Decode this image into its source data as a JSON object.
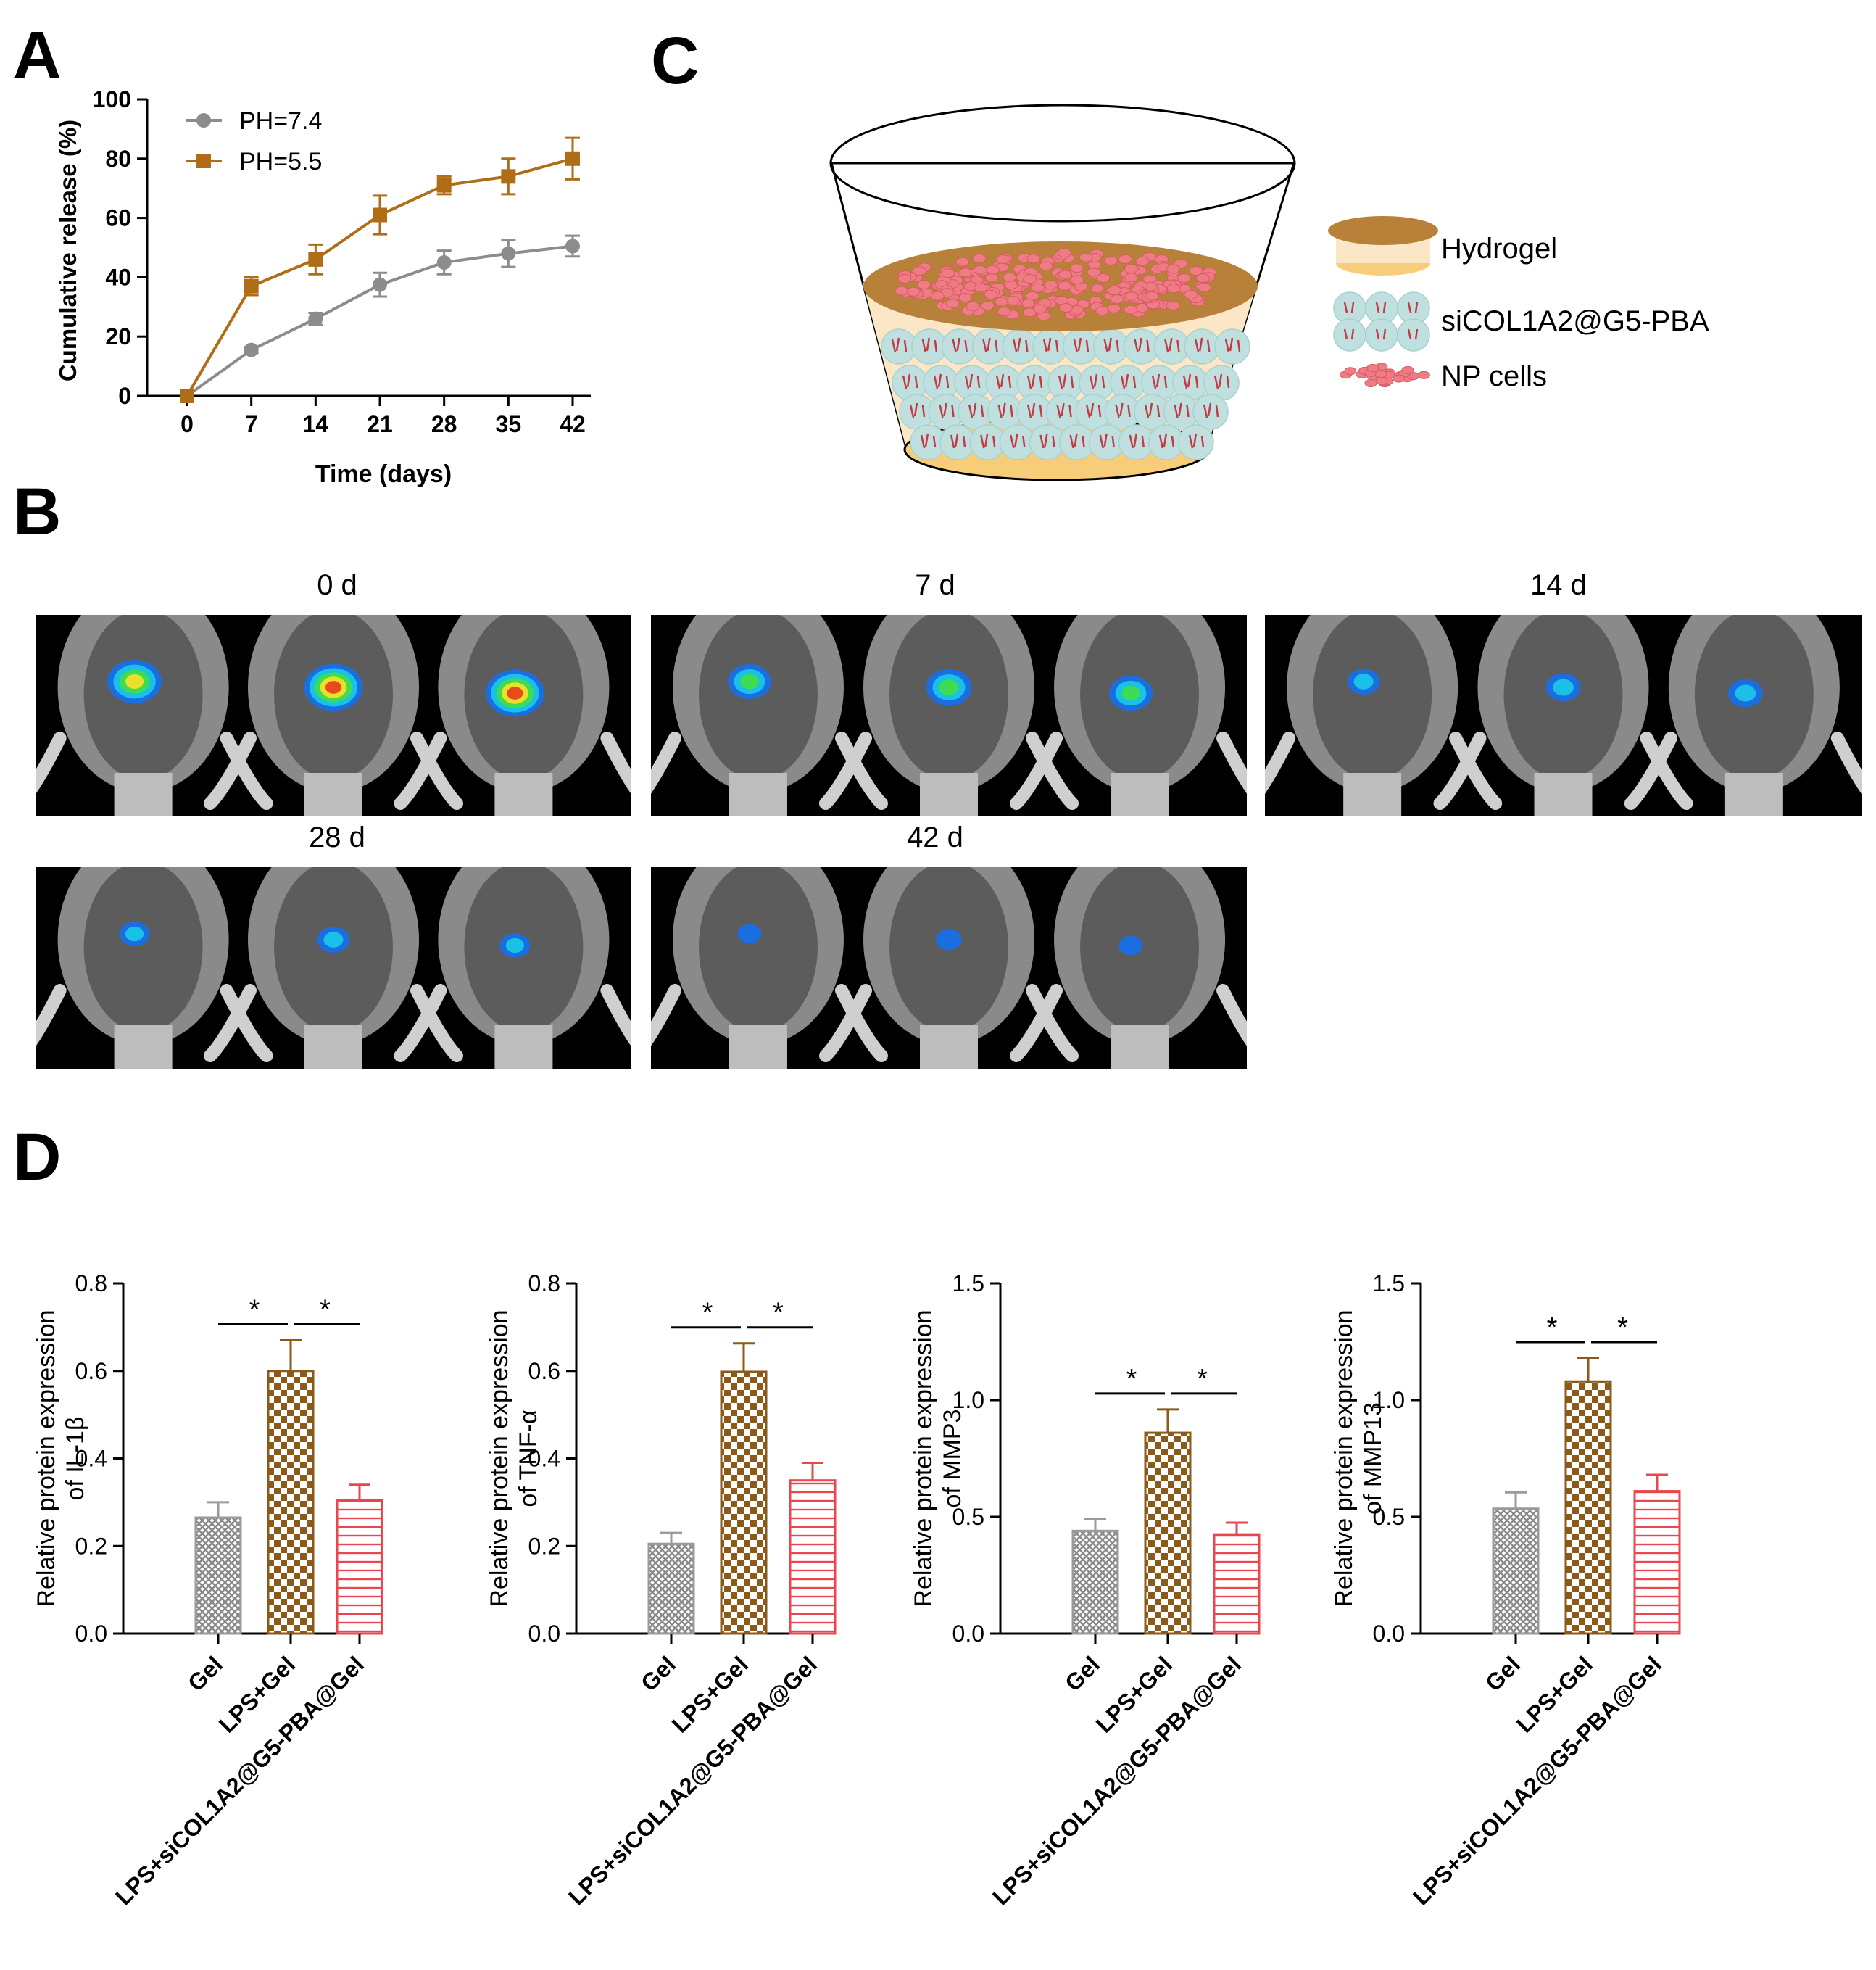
{
  "panels": {
    "a": "A",
    "b": "B",
    "c": "C",
    "d": "D"
  },
  "chart_data": [
    {
      "type": "line",
      "panel": "A",
      "xlabel": "Time (days)",
      "ylabel": "Cumulative release (%)",
      "x": [
        0,
        7,
        14,
        21,
        28,
        35,
        42
      ],
      "ylim": [
        0,
        100
      ],
      "yticks": [
        0,
        20,
        40,
        60,
        80,
        100
      ],
      "legend_position": "top-left",
      "series": [
        {
          "name": "PH=7.4",
          "color": "#8c8c8c",
          "marker": "circle",
          "values": [
            0,
            15.5,
            26,
            37.5,
            45,
            48,
            50.5
          ],
          "errors": [
            0,
            1,
            2,
            4,
            4,
            4.5,
            3.5
          ]
        },
        {
          "name": "PH=5.5",
          "color": "#b06d17",
          "marker": "square",
          "values": [
            0,
            37,
            46,
            61,
            71,
            74,
            80
          ],
          "errors": [
            0,
            3,
            5,
            6.5,
            3,
            6,
            7
          ]
        }
      ]
    },
    {
      "type": "bar",
      "panel": "D",
      "ylabel": [
        "Relative protein expression",
        "of IL-1β"
      ],
      "categories": [
        "Gel",
        "LPS+Gel",
        "LPS+siCOL1A2@G5-PBA@Gel"
      ],
      "values": [
        0.265,
        0.6,
        0.305
      ],
      "errors": [
        0.035,
        0.07,
        0.035
      ],
      "ylim": [
        0,
        0.8
      ],
      "yticks": [
        "0.0",
        "0.2",
        "0.4",
        "0.6",
        "0.8"
      ],
      "significance": [
        "*",
        "*"
      ]
    },
    {
      "type": "bar",
      "panel": "D",
      "ylabel": [
        "Relative protein expression",
        "of TNF-α"
      ],
      "categories": [
        "Gel",
        "LPS+Gel",
        "LPS+siCOL1A2@G5-PBA@Gel"
      ],
      "values": [
        0.205,
        0.598,
        0.35
      ],
      "errors": [
        0.025,
        0.065,
        0.04
      ],
      "ylim": [
        0,
        0.8
      ],
      "yticks": [
        "0.0",
        "0.2",
        "0.4",
        "0.6",
        "0.8"
      ],
      "significance": [
        "*",
        "*"
      ]
    },
    {
      "type": "bar",
      "panel": "D",
      "ylabel": [
        "Relative protein expression",
        "of MMP3"
      ],
      "categories": [
        "Gel",
        "LPS+Gel",
        "LPS+siCOL1A2@G5-PBA@Gel"
      ],
      "values": [
        0.44,
        0.86,
        0.425
      ],
      "errors": [
        0.05,
        0.1,
        0.05
      ],
      "ylim": [
        0,
        1.5
      ],
      "yticks": [
        "0.0",
        "0.5",
        "1.0",
        "1.5"
      ],
      "significance": [
        "*",
        "*"
      ]
    },
    {
      "type": "bar",
      "panel": "D",
      "ylabel": [
        "Relative protein expression",
        "of MMP13"
      ],
      "categories": [
        "Gel",
        "LPS+Gel",
        "LPS+siCOL1A2@G5-PBA@Gel"
      ],
      "values": [
        0.535,
        1.08,
        0.61
      ],
      "errors": [
        0.07,
        0.1,
        0.07
      ],
      "ylim": [
        0,
        1.5
      ],
      "yticks": [
        "0.0",
        "0.5",
        "1.0",
        "1.5"
      ],
      "significance": [
        "*",
        "*"
      ]
    }
  ],
  "bar_styles": [
    {
      "fill": "#9a9a9a",
      "pattern": "crosshatch"
    },
    {
      "fill": "#8c5a18",
      "pattern": "checker"
    },
    {
      "fill": "#e8474f",
      "pattern": "horizontal-lines"
    }
  ],
  "schematic": {
    "legend": [
      "Hydrogel",
      "siCOL1A2@G5-PBA",
      "NP cells"
    ],
    "colors": {
      "hydrogel_top": "#b8813a",
      "hydrogel_bottom": "#f7cd7a",
      "cells": "#ef7c84",
      "nanoparticles": "#bfe0de"
    }
  },
  "imaging": {
    "timepoints": [
      "0 d",
      "7 d",
      "14 d",
      "28 d",
      "42 d"
    ],
    "signal_colors": [
      "#1a6ee0",
      "#19c0e8",
      "#3ddc52",
      "#e8e02a",
      "#e84a1c"
    ],
    "signal_levels": {
      "0 d": [
        0.85,
        0.95,
        0.95
      ],
      "7 d": [
        0.6,
        0.65,
        0.6
      ],
      "14 d": [
        0.35,
        0.4,
        0.4
      ],
      "28 d": [
        0.3,
        0.35,
        0.3
      ],
      "42 d": [
        0.15,
        0.2,
        0.15
      ]
    }
  }
}
